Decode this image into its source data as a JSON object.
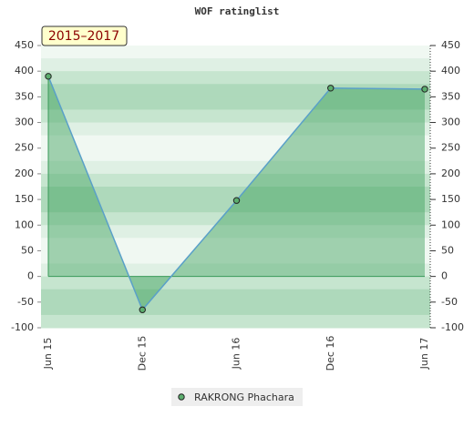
{
  "chart_data": {
    "type": "line",
    "title": "WOF ratinglist",
    "badge": "2015–2017",
    "categories": [
      "Jun 15",
      "Dec 15",
      "Jun 16",
      "Dec 16",
      "Jun 17"
    ],
    "series": [
      {
        "name": "RAKRONG Phachara",
        "color": "#5aa0c8",
        "values": [
          390,
          -65,
          148,
          367,
          365
        ]
      }
    ],
    "ylim": [
      -100,
      450
    ],
    "yticks": [
      -100,
      -50,
      0,
      50,
      100,
      150,
      200,
      250,
      300,
      350,
      400,
      450
    ],
    "y2lim": [
      -100,
      450
    ],
    "y2ticks": [
      -100,
      -50,
      0,
      50,
      100,
      150,
      200,
      250,
      300,
      350,
      400,
      450
    ],
    "grid": true,
    "legend": "bottom"
  }
}
